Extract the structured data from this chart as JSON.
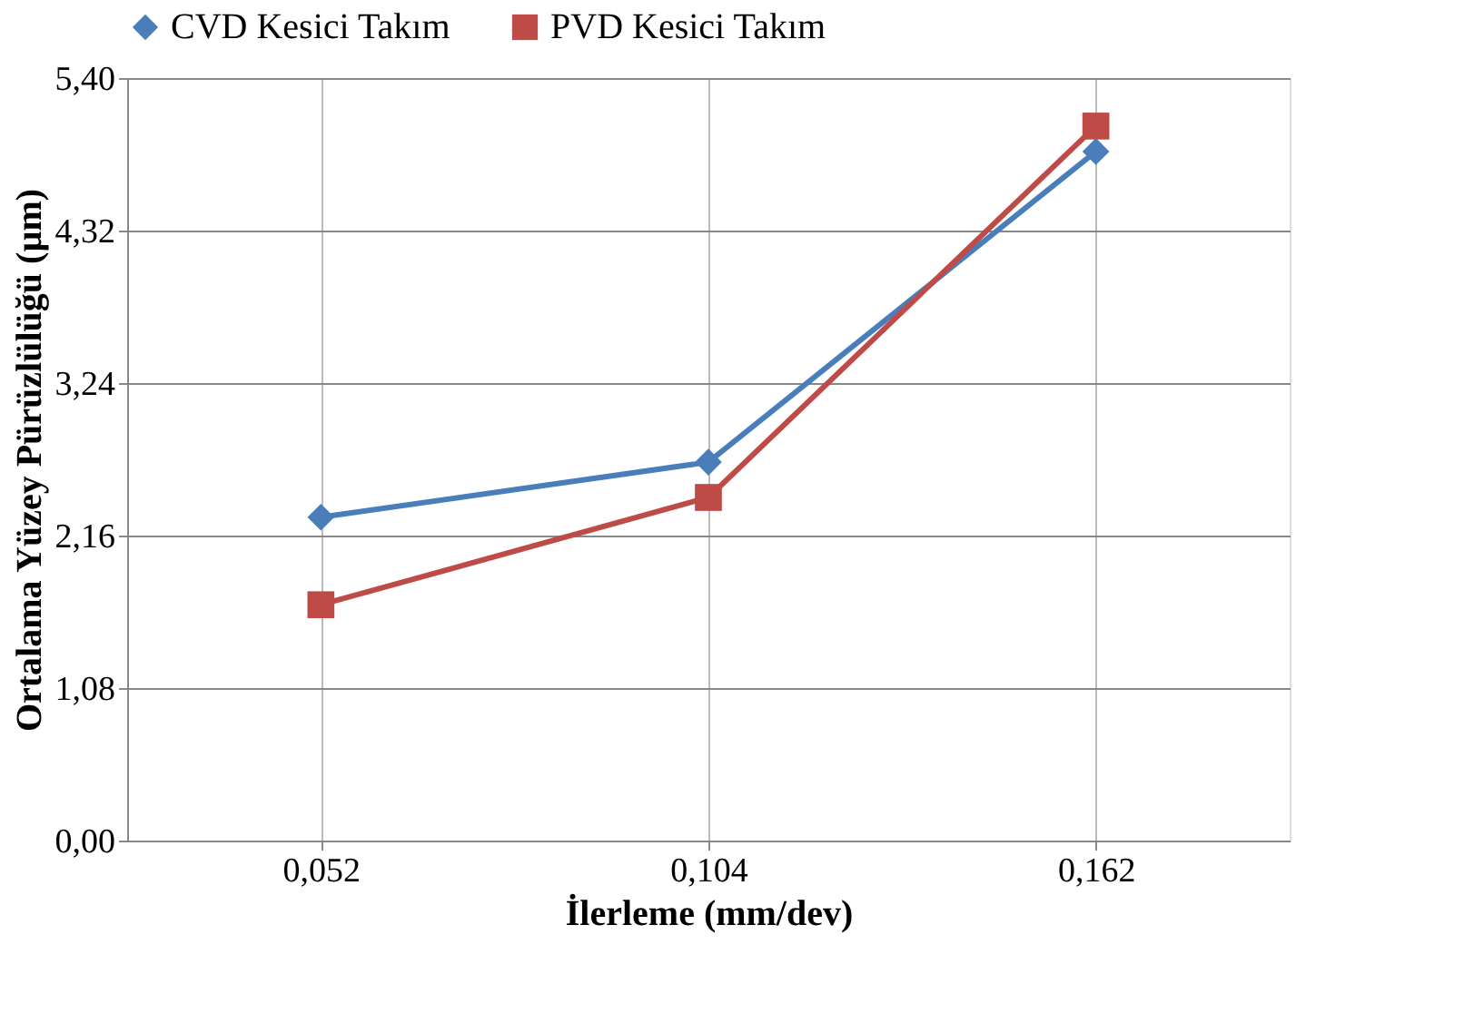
{
  "chart_data": {
    "type": "line",
    "xlabel": "İlerleme (mm/dev)",
    "ylabel": "Ortalama Yüzey Pürüzlülüğü (µm)",
    "categories": [
      "0,052",
      "0,104",
      "0,162"
    ],
    "series": [
      {
        "name": "CVD Kesici Takım",
        "color": "#4a7ebb",
        "marker": "diamond",
        "values": [
          2.29,
          2.68,
          4.88
        ]
      },
      {
        "name": "PVD Kesici Takım",
        "color": "#be4b48",
        "marker": "square",
        "values": [
          1.67,
          2.43,
          5.06
        ]
      }
    ],
    "ylim": [
      0,
      5.4
    ],
    "yticks": [
      {
        "value": 0,
        "label": "0,00"
      },
      {
        "value": 1.08,
        "label": "1,08"
      },
      {
        "value": 2.16,
        "label": "2,16"
      },
      {
        "value": 3.24,
        "label": "3,24"
      },
      {
        "value": 4.32,
        "label": "4,32"
      },
      {
        "value": 5.4,
        "label": "5,40"
      }
    ],
    "grid": true,
    "legend": "top",
    "line_style": "solid"
  }
}
